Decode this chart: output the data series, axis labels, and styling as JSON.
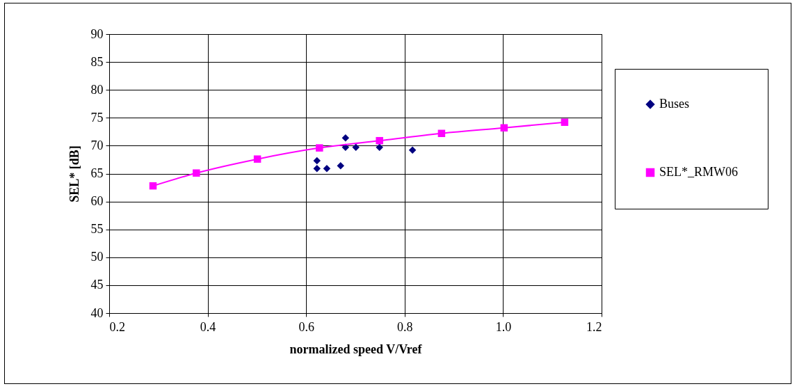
{
  "chart_data": {
    "type": "scatter",
    "xlabel": "normalized speed V/Vref",
    "ylabel": "SEL* [dB]",
    "xlim": [
      0.2,
      1.2
    ],
    "xticks": [
      0.2,
      0.4,
      0.6,
      0.8,
      {
        "value": 1.0,
        "label": "1.0"
      },
      1.2
    ],
    "ylim": [
      40,
      90
    ],
    "yticks": [
      40,
      45,
      50,
      55,
      60,
      65,
      70,
      75,
      80,
      85,
      90
    ],
    "grid": true,
    "legend": "right",
    "series": [
      {
        "name": "Buses",
        "marker": "diamond",
        "color": "#000080",
        "x": [
          0.622,
          0.622,
          0.642,
          0.67,
          0.68,
          0.68,
          0.701,
          0.749,
          0.816
        ],
        "values": [
          67.3,
          65.9,
          65.9,
          66.4,
          71.4,
          69.7,
          69.7,
          69.7,
          69.2
        ]
      },
      {
        "name": "SEL*_RMW06",
        "type": "line",
        "marker": "square",
        "color": "#ff00ff",
        "x": [
          0.289,
          0.377,
          0.501,
          0.627,
          0.749,
          0.875,
          1.002,
          1.125
        ],
        "values": [
          62.8,
          65.1,
          67.6,
          69.6,
          70.9,
          72.2,
          73.2,
          74.2
        ]
      }
    ]
  }
}
